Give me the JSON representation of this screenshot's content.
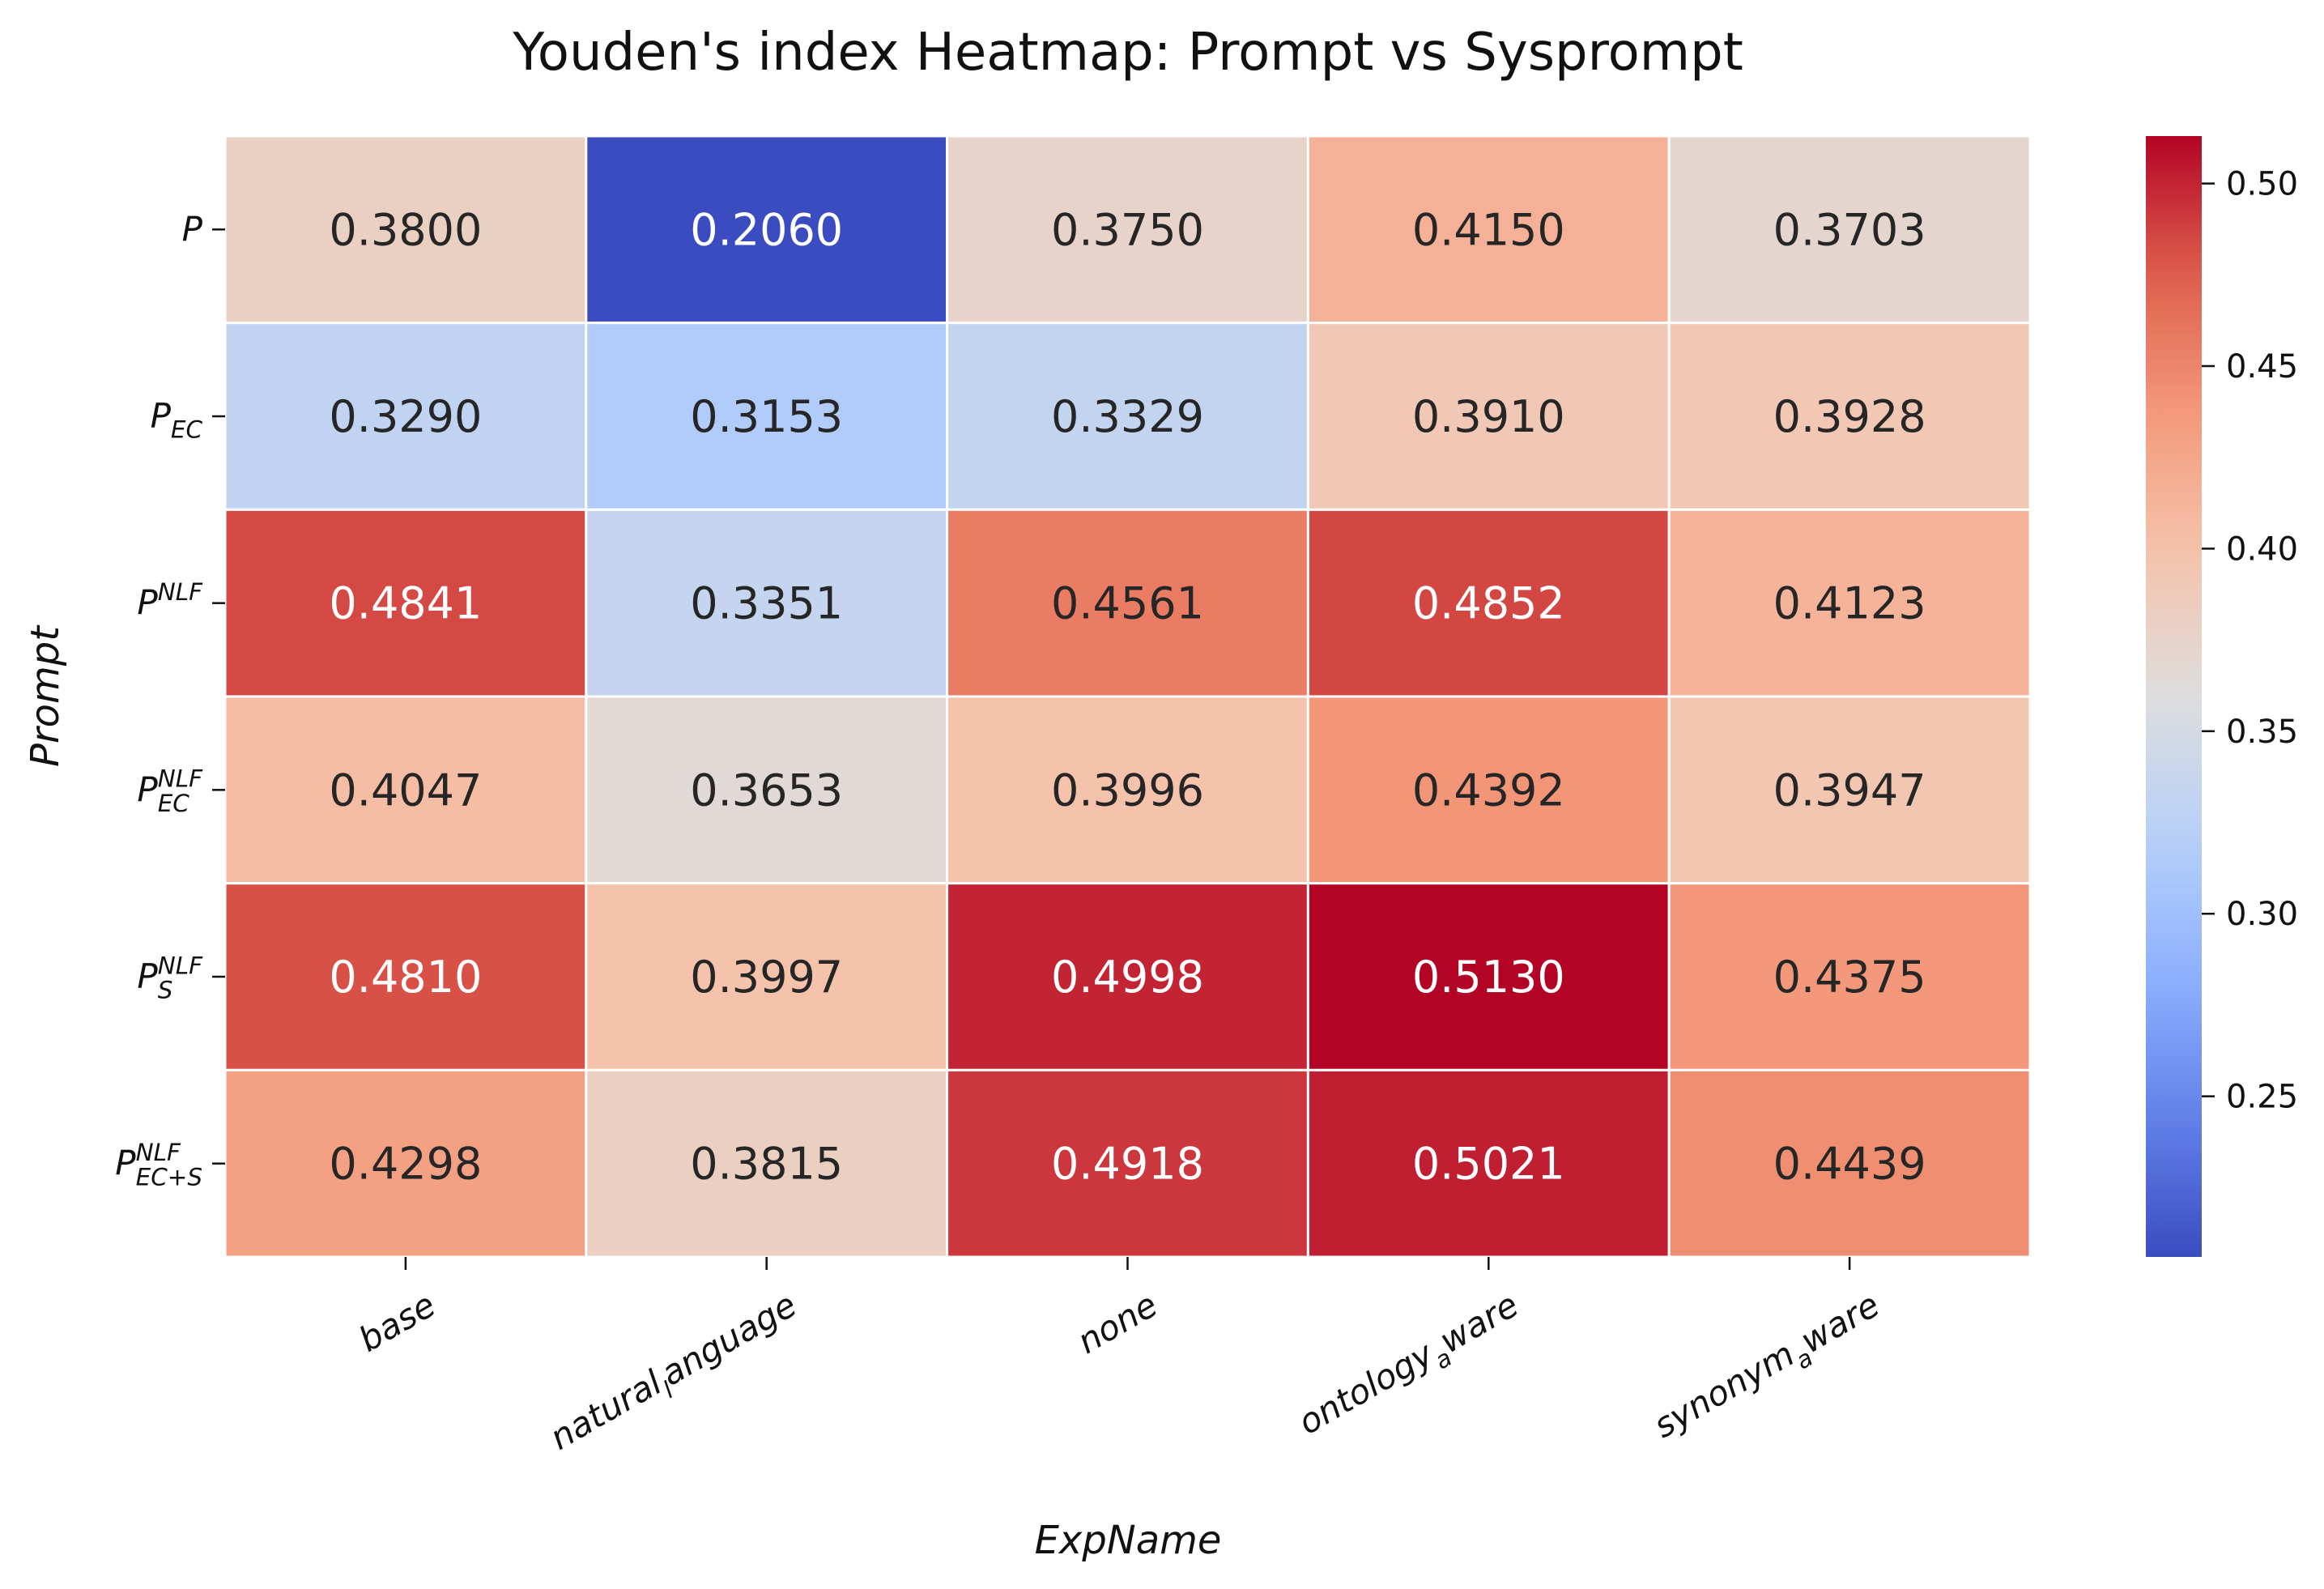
{
  "chart_data": {
    "type": "heatmap",
    "title": "Youden's index Heatmap: Prompt vs Sysprompt",
    "xlabel": "ExpName",
    "ylabel": "Prompt",
    "x_categories": [
      {
        "main": "base"
      },
      {
        "main": "natural",
        "sub": "l",
        "rest": "anguage"
      },
      {
        "main": "none"
      },
      {
        "main": "ontology",
        "sub": "a",
        "rest": "ware"
      },
      {
        "main": "synonym",
        "sub": "a",
        "rest": "ware"
      }
    ],
    "y_categories": [
      {
        "main": "P"
      },
      {
        "main": "P",
        "sub": "EC"
      },
      {
        "main": "P",
        "sup": "NLF"
      },
      {
        "main": "P",
        "sub": "EC",
        "sup": "NLF"
      },
      {
        "main": "P",
        "sub": "S",
        "sup": "NLF"
      },
      {
        "main": "P",
        "sub": "EC+S",
        "sup": "NLF"
      }
    ],
    "values": [
      [
        0.38,
        0.206,
        0.375,
        0.415,
        0.3703
      ],
      [
        0.329,
        0.3153,
        0.3329,
        0.391,
        0.3928
      ],
      [
        0.4841,
        0.3351,
        0.4561,
        0.4852,
        0.4123
      ],
      [
        0.4047,
        0.3653,
        0.3996,
        0.4392,
        0.3947
      ],
      [
        0.481,
        0.3997,
        0.4998,
        0.513,
        0.4375
      ],
      [
        0.4298,
        0.3815,
        0.4918,
        0.5021,
        0.4439
      ]
    ],
    "colormap": "coolwarm",
    "colorbar": {
      "range": [
        0.206,
        0.513
      ],
      "ticks": [
        "0.25",
        "0.30",
        "0.35",
        "0.40",
        "0.45",
        "0.50"
      ]
    },
    "value_format": "4 decimals",
    "grid_line_color": "#ffffff"
  }
}
